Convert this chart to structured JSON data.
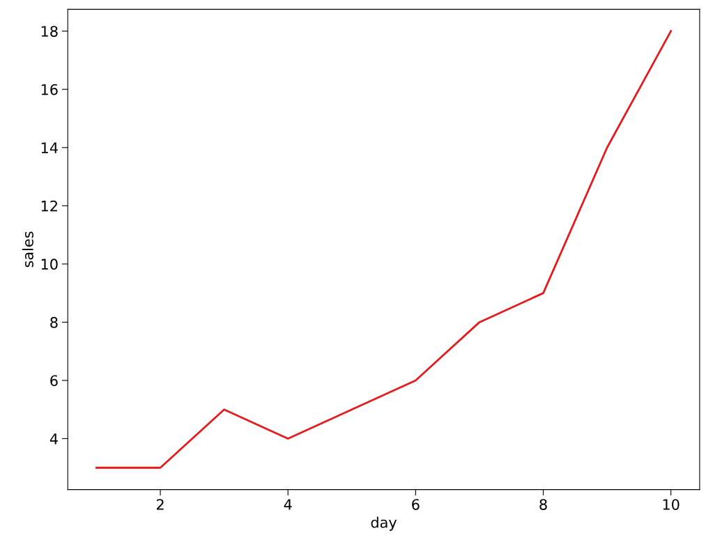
{
  "chart_data": {
    "type": "line",
    "xlabel": "day",
    "ylabel": "sales",
    "x": [
      1,
      2,
      3,
      4,
      5,
      6,
      7,
      8,
      9,
      10
    ],
    "series": [
      {
        "color": "#e41a1c",
        "values": [
          3,
          3,
          5,
          4,
          5,
          6,
          8,
          9,
          14,
          18
        ]
      }
    ],
    "xlim": [
      0.55,
      10.45
    ],
    "ylim": [
      2.25,
      18.75
    ],
    "xticks": [
      2,
      4,
      6,
      8,
      10
    ],
    "yticks": [
      4,
      6,
      8,
      10,
      12,
      14,
      16,
      18
    ],
    "grid": false,
    "legend": false,
    "marker": "none",
    "line_style": "solid"
  }
}
